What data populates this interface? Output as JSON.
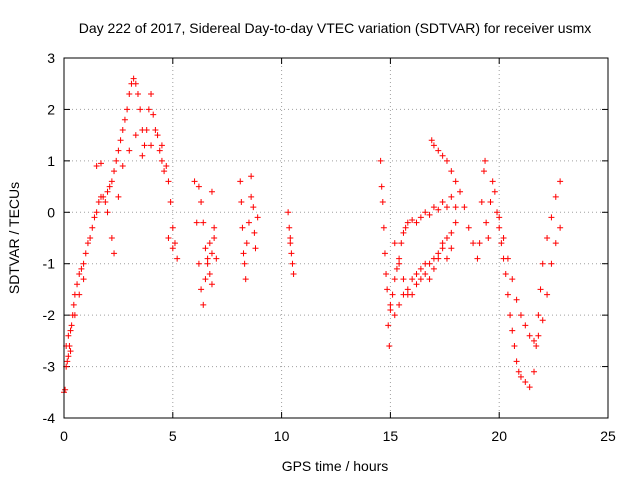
{
  "chart_data": {
    "type": "scatter",
    "title": "Day 222 of 2017, Sidereal Day-to-day VTEC variation (SDTVAR) for receiver usmx",
    "xlabel": "GPS time / hours",
    "ylabel": "SDTVAR / TECUs",
    "xlim": [
      0,
      25
    ],
    "ylim": [
      -4,
      3
    ],
    "xticks": [
      "0",
      "5",
      "10",
      "15",
      "20",
      "25"
    ],
    "yticks": [
      "-4",
      "-3",
      "-2",
      "-1",
      "0",
      "1",
      "2",
      "3"
    ],
    "grid": true,
    "marker": "+",
    "color": "#ff0000",
    "series": [
      {
        "name": "SDTVAR",
        "points": [
          [
            0.0,
            -3.5
          ],
          [
            0.05,
            -3.45
          ],
          [
            0.1,
            -3.0
          ],
          [
            0.15,
            -2.9
          ],
          [
            0.2,
            -2.8
          ],
          [
            0.25,
            -2.6
          ],
          [
            0.3,
            -2.3
          ],
          [
            0.35,
            -2.2
          ],
          [
            0.4,
            -2.0
          ],
          [
            0.45,
            -1.8
          ],
          [
            0.5,
            -1.6
          ],
          [
            0.6,
            -1.4
          ],
          [
            0.7,
            -1.2
          ],
          [
            0.8,
            -1.1
          ],
          [
            0.9,
            -1.0
          ],
          [
            1.0,
            -0.8
          ],
          [
            1.1,
            -0.6
          ],
          [
            1.2,
            -0.5
          ],
          [
            1.3,
            -0.3
          ],
          [
            1.4,
            -0.1
          ],
          [
            1.5,
            0.0
          ],
          [
            1.6,
            0.2
          ],
          [
            1.7,
            0.3
          ],
          [
            1.8,
            0.3
          ],
          [
            1.9,
            0.2
          ],
          [
            2.0,
            0.4
          ],
          [
            2.1,
            0.5
          ],
          [
            2.2,
            0.6
          ],
          [
            2.3,
            0.8
          ],
          [
            2.4,
            1.0
          ],
          [
            2.5,
            1.2
          ],
          [
            2.6,
            1.4
          ],
          [
            2.7,
            1.6
          ],
          [
            2.8,
            1.8
          ],
          [
            2.9,
            2.0
          ],
          [
            3.0,
            2.3
          ],
          [
            3.1,
            2.5
          ],
          [
            3.2,
            2.6
          ],
          [
            3.3,
            2.5
          ],
          [
            3.4,
            2.3
          ],
          [
            3.5,
            2.0
          ],
          [
            3.6,
            1.6
          ],
          [
            3.7,
            1.3
          ],
          [
            3.8,
            1.6
          ],
          [
            3.9,
            2.0
          ],
          [
            4.0,
            2.3
          ],
          [
            4.1,
            1.9
          ],
          [
            4.2,
            1.6
          ],
          [
            4.3,
            1.5
          ],
          [
            4.4,
            1.2
          ],
          [
            4.5,
            1.0
          ],
          [
            4.6,
            0.8
          ],
          [
            4.7,
            0.9
          ],
          [
            4.8,
            0.6
          ],
          [
            4.9,
            0.2
          ],
          [
            5.0,
            -0.3
          ],
          [
            5.1,
            -0.6
          ],
          [
            5.2,
            -0.9
          ],
          [
            1.5,
            0.9
          ],
          [
            1.7,
            0.95
          ],
          [
            2.0,
            0.0
          ],
          [
            2.2,
            -0.5
          ],
          [
            2.3,
            -0.8
          ],
          [
            2.5,
            0.3
          ],
          [
            2.7,
            0.9
          ],
          [
            3.0,
            1.2
          ],
          [
            3.3,
            1.5
          ],
          [
            3.6,
            1.1
          ],
          [
            4.0,
            1.3
          ],
          [
            4.5,
            1.3
          ],
          [
            4.8,
            -0.5
          ],
          [
            5.0,
            -0.7
          ],
          [
            0.1,
            -2.6
          ],
          [
            0.2,
            -2.4
          ],
          [
            0.3,
            -2.7
          ],
          [
            0.5,
            -2.0
          ],
          [
            0.7,
            -1.6
          ],
          [
            0.9,
            -1.3
          ],
          [
            6.2,
            0.5
          ],
          [
            6.3,
            0.2
          ],
          [
            6.4,
            -0.2
          ],
          [
            6.5,
            -0.7
          ],
          [
            6.6,
            -1.0
          ],
          [
            6.7,
            -1.2
          ],
          [
            6.8,
            -0.8
          ],
          [
            6.9,
            -0.5
          ],
          [
            6.0,
            0.6
          ],
          [
            6.1,
            -0.2
          ],
          [
            6.2,
            -1.0
          ],
          [
            6.3,
            -1.5
          ],
          [
            6.4,
            -1.8
          ],
          [
            6.5,
            -1.3
          ],
          [
            6.6,
            -0.9
          ],
          [
            6.7,
            -0.6
          ],
          [
            6.8,
            -1.4
          ],
          [
            6.9,
            -0.3
          ],
          [
            7.0,
            -0.9
          ],
          [
            6.8,
            0.4
          ],
          [
            8.1,
            0.6
          ],
          [
            8.15,
            0.2
          ],
          [
            8.2,
            -0.3
          ],
          [
            8.25,
            -0.8
          ],
          [
            8.3,
            -1.0
          ],
          [
            8.35,
            -1.3
          ],
          [
            8.4,
            -0.6
          ],
          [
            8.5,
            -0.2
          ],
          [
            8.6,
            0.3
          ],
          [
            8.7,
            0.1
          ],
          [
            8.75,
            -0.4
          ],
          [
            8.8,
            -0.7
          ],
          [
            8.6,
            0.7
          ],
          [
            8.9,
            -0.1
          ],
          [
            10.3,
            0.0
          ],
          [
            10.35,
            -0.3
          ],
          [
            10.4,
            -0.5
          ],
          [
            10.45,
            -0.8
          ],
          [
            10.5,
            -1.0
          ],
          [
            10.55,
            -1.2
          ],
          [
            10.4,
            -0.6
          ],
          [
            14.55,
            1.0
          ],
          [
            14.6,
            0.5
          ],
          [
            14.65,
            0.2
          ],
          [
            14.7,
            -0.3
          ],
          [
            14.75,
            -0.8
          ],
          [
            14.8,
            -1.2
          ],
          [
            14.85,
            -1.5
          ],
          [
            14.9,
            -2.2
          ],
          [
            14.95,
            -2.6
          ],
          [
            15.0,
            -1.9
          ],
          [
            15.1,
            -1.6
          ],
          [
            15.2,
            -1.3
          ],
          [
            15.3,
            -1.1
          ],
          [
            15.4,
            -0.9
          ],
          [
            15.5,
            -0.6
          ],
          [
            15.6,
            -0.4
          ],
          [
            15.7,
            -0.3
          ],
          [
            15.8,
            -0.2
          ],
          [
            16.0,
            -0.15
          ],
          [
            16.2,
            -0.2
          ],
          [
            16.4,
            -0.1
          ],
          [
            16.6,
            0.0
          ],
          [
            16.8,
            -0.05
          ],
          [
            17.0,
            0.1
          ],
          [
            17.2,
            0.05
          ],
          [
            17.4,
            0.2
          ],
          [
            17.6,
            0.1
          ],
          [
            17.8,
            0.3
          ],
          [
            18.0,
            0.1
          ],
          [
            15.0,
            -1.8
          ],
          [
            15.2,
            -2.0
          ],
          [
            15.4,
            -1.8
          ],
          [
            15.6,
            -1.6
          ],
          [
            15.8,
            -1.5
          ],
          [
            16.0,
            -1.3
          ],
          [
            16.2,
            -1.2
          ],
          [
            16.4,
            -1.1
          ],
          [
            16.6,
            -1.0
          ],
          [
            16.8,
            -1.0
          ],
          [
            17.0,
            -0.9
          ],
          [
            17.2,
            -0.8
          ],
          [
            17.4,
            -0.6
          ],
          [
            17.6,
            -0.5
          ],
          [
            17.8,
            -0.4
          ],
          [
            18.0,
            -0.2
          ],
          [
            15.2,
            -0.6
          ],
          [
            15.4,
            -1.0
          ],
          [
            15.6,
            -1.3
          ],
          [
            15.8,
            -1.6
          ],
          [
            16.0,
            -1.6
          ],
          [
            16.2,
            -1.4
          ],
          [
            16.4,
            -1.3
          ],
          [
            16.6,
            -1.2
          ],
          [
            16.8,
            -1.3
          ],
          [
            17.0,
            -1.1
          ],
          [
            17.2,
            -0.9
          ],
          [
            17.4,
            -0.7
          ],
          [
            17.6,
            -0.9
          ],
          [
            17.8,
            -0.7
          ],
          [
            16.9,
            1.4
          ],
          [
            17.0,
            1.3
          ],
          [
            17.2,
            1.2
          ],
          [
            17.4,
            1.1
          ],
          [
            17.6,
            1.0
          ],
          [
            17.8,
            0.8
          ],
          [
            18.0,
            0.6
          ],
          [
            18.2,
            0.4
          ],
          [
            18.4,
            0.1
          ],
          [
            18.6,
            -0.3
          ],
          [
            18.8,
            -0.6
          ],
          [
            19.0,
            -0.9
          ],
          [
            19.1,
            -0.6
          ],
          [
            19.2,
            0.2
          ],
          [
            19.3,
            0.8
          ],
          [
            19.35,
            1.0
          ],
          [
            19.4,
            -0.2
          ],
          [
            19.5,
            -0.5
          ],
          [
            19.6,
            0.2
          ],
          [
            19.7,
            0.6
          ],
          [
            19.8,
            0.4
          ],
          [
            19.9,
            0.0
          ],
          [
            20.0,
            -0.3
          ],
          [
            20.1,
            -0.6
          ],
          [
            20.2,
            -0.9
          ],
          [
            20.3,
            -1.2
          ],
          [
            20.4,
            -1.6
          ],
          [
            20.5,
            -2.0
          ],
          [
            20.6,
            -2.3
          ],
          [
            20.7,
            -2.6
          ],
          [
            20.8,
            -2.9
          ],
          [
            20.9,
            -3.1
          ],
          [
            21.0,
            -3.2
          ],
          [
            21.2,
            -3.3
          ],
          [
            21.4,
            -3.4
          ],
          [
            21.6,
            -3.1
          ],
          [
            21.7,
            -2.6
          ],
          [
            21.8,
            -2.0
          ],
          [
            21.9,
            -1.5
          ],
          [
            22.0,
            -1.0
          ],
          [
            22.2,
            -0.5
          ],
          [
            22.4,
            -0.1
          ],
          [
            22.6,
            0.3
          ],
          [
            22.8,
            0.6
          ],
          [
            20.0,
            -0.1
          ],
          [
            20.2,
            -0.5
          ],
          [
            20.4,
            -0.9
          ],
          [
            20.6,
            -1.3
          ],
          [
            20.8,
            -1.7
          ],
          [
            21.0,
            -2.0
          ],
          [
            21.2,
            -2.2
          ],
          [
            21.4,
            -2.4
          ],
          [
            21.6,
            -2.5
          ],
          [
            21.8,
            -2.4
          ],
          [
            22.0,
            -2.1
          ],
          [
            22.2,
            -1.6
          ],
          [
            22.4,
            -1.0
          ],
          [
            22.6,
            -0.6
          ],
          [
            22.8,
            -0.3
          ]
        ]
      }
    ]
  }
}
